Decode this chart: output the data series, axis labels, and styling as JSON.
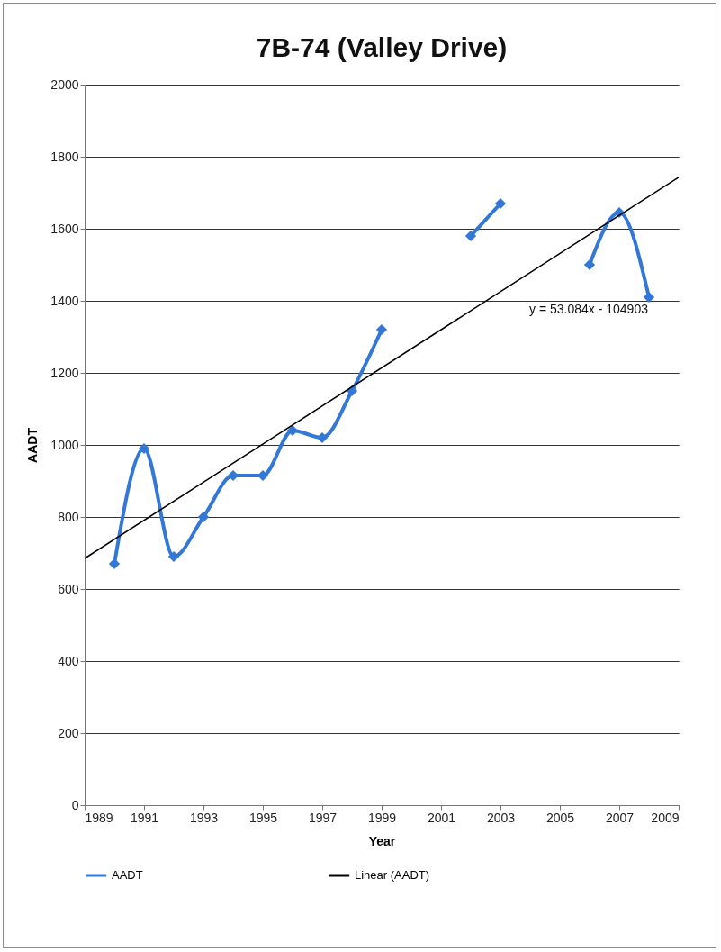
{
  "chart_data": {
    "type": "line",
    "title": "7B-74 (Valley Drive)",
    "xlabel": "Year",
    "ylabel": "AADT",
    "x": [
      1990,
      1991,
      1992,
      1993,
      1994,
      1995,
      1996,
      1997,
      1998,
      1999,
      2000,
      2001,
      2002,
      2003,
      2004,
      2005,
      2006,
      2007,
      2008
    ],
    "series": [
      {
        "name": "AADT",
        "color": "#3378d6",
        "values": [
          670,
          990,
          690,
          800,
          915,
          915,
          1040,
          1020,
          1150,
          1320,
          null,
          null,
          1580,
          1670,
          null,
          null,
          1500,
          1645,
          1410
        ]
      },
      {
        "name": "Linear (AADT)",
        "color": "#000000",
        "type": "line",
        "marker": "none",
        "x": [
          1989,
          2009
        ],
        "values": [
          685,
          1743
        ]
      }
    ],
    "xlim": [
      1989,
      2009
    ],
    "xticks": [
      1989,
      1991,
      1993,
      1995,
      1997,
      1999,
      2001,
      2003,
      2005,
      2007,
      2009
    ],
    "ylim": [
      0,
      2000
    ],
    "yticks": [
      0,
      200,
      400,
      600,
      800,
      1000,
      1200,
      1400,
      1600,
      1800,
      2000
    ],
    "grid": "y",
    "legend": "bottom",
    "marker": "diamond",
    "line_style": "solid",
    "annotations": [
      "y = 53.084x - 104903"
    ]
  }
}
